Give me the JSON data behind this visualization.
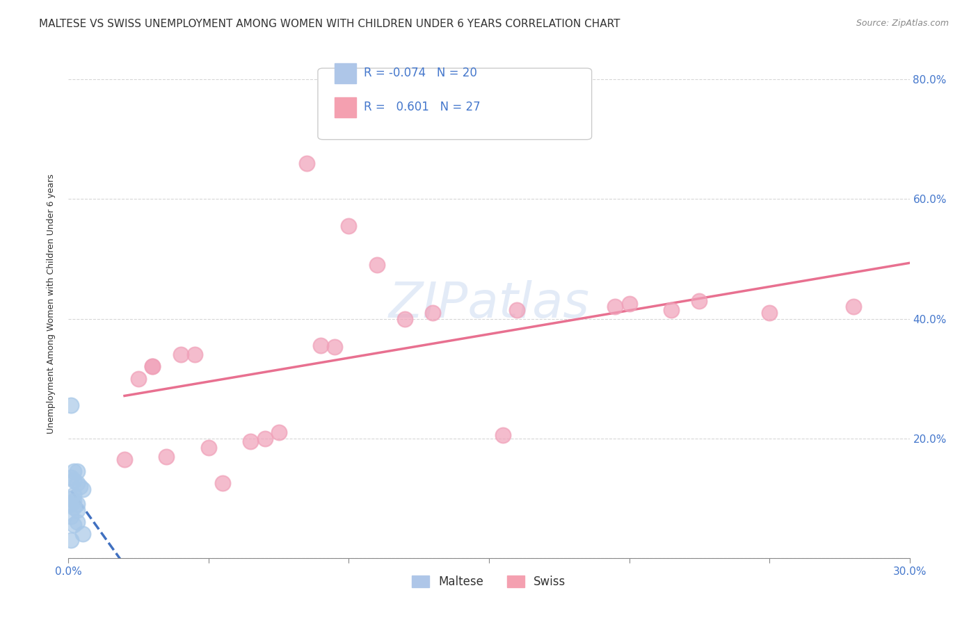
{
  "title": "MALTESE VS SWISS UNEMPLOYMENT AMONG WOMEN WITH CHILDREN UNDER 6 YEARS CORRELATION CHART",
  "source": "Source: ZipAtlas.com",
  "ylabel": "Unemployment Among Women with Children Under 6 years",
  "watermark": "ZIPatlas",
  "maltese_x": [
    0.001,
    0.002,
    0.003,
    0.001,
    0.002,
    0.003,
    0.004,
    0.005,
    0.002,
    0.001,
    0.002,
    0.003,
    0.001,
    0.002,
    0.003,
    0.001,
    0.003,
    0.002,
    0.005,
    0.001
  ],
  "maltese_y": [
    0.255,
    0.145,
    0.145,
    0.135,
    0.13,
    0.125,
    0.12,
    0.115,
    0.105,
    0.1,
    0.095,
    0.09,
    0.09,
    0.085,
    0.08,
    0.07,
    0.06,
    0.055,
    0.04,
    0.03
  ],
  "swiss_x": [
    0.02,
    0.025,
    0.03,
    0.03,
    0.035,
    0.04,
    0.045,
    0.05,
    0.055,
    0.085,
    0.065,
    0.07,
    0.075,
    0.09,
    0.095,
    0.1,
    0.11,
    0.12,
    0.13,
    0.155,
    0.16,
    0.195,
    0.2,
    0.215,
    0.225,
    0.25,
    0.28
  ],
  "swiss_y": [
    0.165,
    0.3,
    0.32,
    0.32,
    0.17,
    0.34,
    0.34,
    0.185,
    0.125,
    0.66,
    0.195,
    0.2,
    0.21,
    0.355,
    0.353,
    0.555,
    0.49,
    0.4,
    0.41,
    0.205,
    0.415,
    0.42,
    0.425,
    0.415,
    0.43,
    0.41,
    0.42
  ],
  "xlim": [
    0.0,
    0.3
  ],
  "ylim": [
    0.0,
    0.85
  ],
  "xtick_vals": [
    0.0,
    0.05,
    0.1,
    0.15,
    0.2,
    0.25,
    0.3
  ],
  "ytick_vals": [
    0.0,
    0.2,
    0.4,
    0.6,
    0.8
  ],
  "ytick_labels": [
    "",
    "20.0%",
    "40.0%",
    "60.0%",
    "80.0%"
  ],
  "xtick_labels": [
    "0.0%",
    "",
    "",
    "",
    "",
    "",
    "30.0%"
  ],
  "maltese_color": "#a8c8e8",
  "swiss_color": "#f0a0b8",
  "maltese_line_color": "#4070c0",
  "swiss_line_color": "#e87090",
  "background_color": "#ffffff",
  "tick_color": "#4477cc",
  "title_fontsize": 11,
  "tick_fontsize": 11,
  "source_fontsize": 9
}
